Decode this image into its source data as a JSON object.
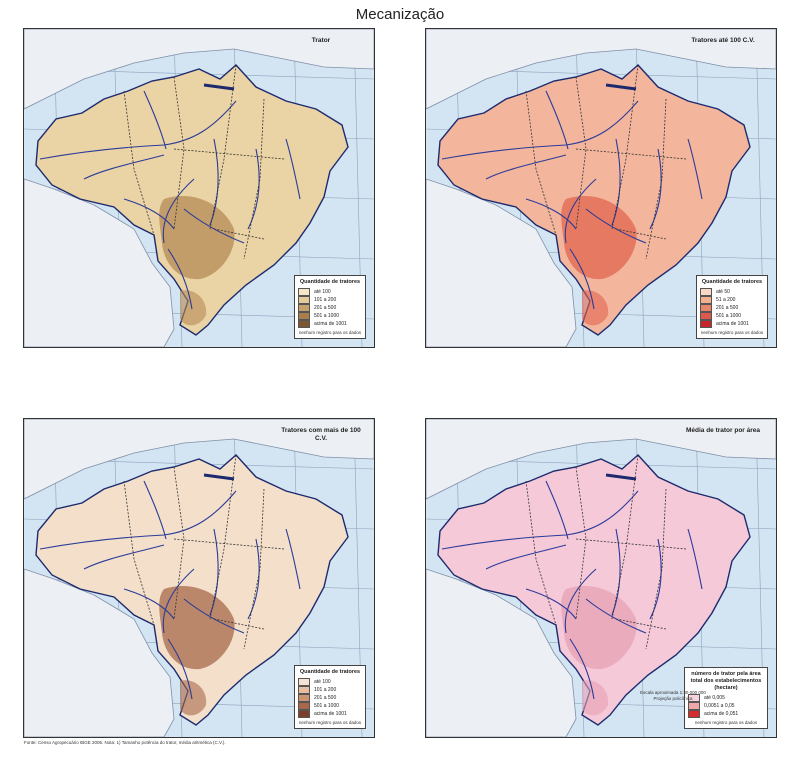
{
  "page_title": "Mecanização",
  "maps": [
    {
      "title": "Trator",
      "legend": {
        "title": "Quantidade de tratores",
        "classes": [
          {
            "label": "até 100",
            "color": "#f5e7c6"
          },
          {
            "label": "101 a 200",
            "color": "#e5cb99"
          },
          {
            "label": "201 a 500",
            "color": "#c8a26e"
          },
          {
            "label": "501 a 1000",
            "color": "#a97d4c"
          },
          {
            "label": "acima de 1001",
            "color": "#7d5530"
          }
        ],
        "note": "nenhum registro para os dados"
      },
      "map_color": "#ead3a4",
      "hot_color": "#b48a55"
    },
    {
      "title": "Tratores até 100 C.V.",
      "legend": {
        "title": "Quantidade de tratores",
        "classes": [
          {
            "label": "até 50",
            "color": "#f9d7c6"
          },
          {
            "label": "51 a 200",
            "color": "#f2b08e"
          },
          {
            "label": "201 a 500",
            "color": "#e8866a"
          },
          {
            "label": "501 a 1000",
            "color": "#dc5a4c"
          },
          {
            "label": "acima de 1001",
            "color": "#c6262a"
          }
        ],
        "note": "nenhum registro para os dados"
      },
      "map_color": "#f3b69d",
      "hot_color": "#e2644e"
    },
    {
      "title": "Tratores com mais de 100 C.V.",
      "legend": {
        "title": "Quantidade de tratores",
        "classes": [
          {
            "label": "até 100",
            "color": "#f7e3d2"
          },
          {
            "label": "101 a 200",
            "color": "#e6bfa0"
          },
          {
            "label": "201 a 500",
            "color": "#cc9470"
          },
          {
            "label": "501 a 1000",
            "color": "#a9674a"
          },
          {
            "label": "acima de 1001",
            "color": "#7c3f2e"
          }
        ],
        "note": "nenhum registro para os dados"
      },
      "map_color": "#f3dfca",
      "hot_color": "#a8694a"
    },
    {
      "title": "Média de trator por área",
      "legend": {
        "title": "número de trator pela área total dos estabelecimentos (hectare)",
        "classes": [
          {
            "label": "até 0,005",
            "color": "#f7d3de"
          },
          {
            "label": "0,0051 a 0,05",
            "color": "#f0a8a6"
          },
          {
            "label": "acima de 0,051",
            "color": "#d62c2f"
          }
        ],
        "note": "nenhum registro para os dados"
      },
      "map_color": "#f6c9d8",
      "hot_color": "#e6a0b4",
      "credits": "Escala aproximada 1:30 000 000 Projeção policônica"
    }
  ],
  "source_text": "Fonte: Censo Agropecuário IBGE 2006. Nota: 1) Tamanho potência do trator, média aritmética (C.V.)."
}
